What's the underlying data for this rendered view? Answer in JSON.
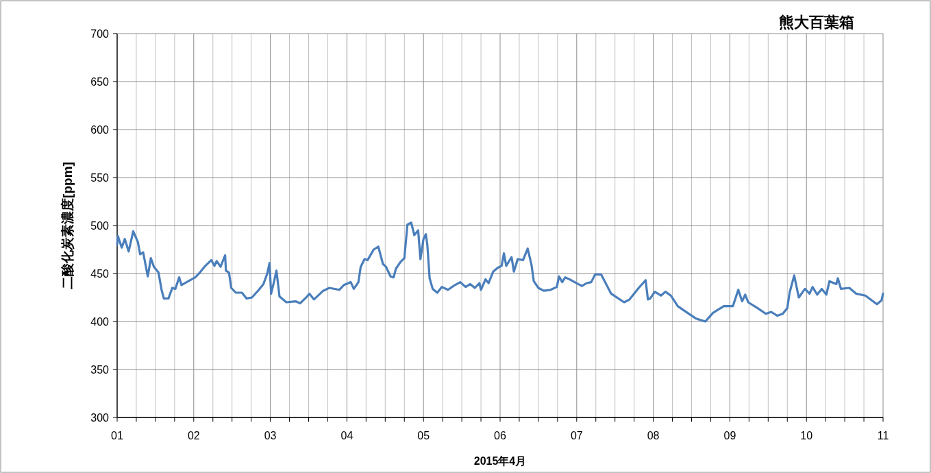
{
  "chart_data": {
    "type": "line",
    "title": "熊大百葉箱",
    "xlabel": "2015年4月",
    "ylabel": "二酸化炭素濃度[ppm]",
    "xlim": [
      1,
      11
    ],
    "ylim": [
      300,
      700
    ],
    "xticks": [
      {
        "value": 1,
        "label": "01"
      },
      {
        "value": 1.25,
        "label": null
      },
      {
        "value": 1.5,
        "label": null
      },
      {
        "value": 1.75,
        "label": null
      },
      {
        "value": 2,
        "label": "02"
      },
      {
        "value": 2.25,
        "label": null
      },
      {
        "value": 2.5,
        "label": null
      },
      {
        "value": 2.75,
        "label": null
      },
      {
        "value": 3,
        "label": "03"
      },
      {
        "value": 3.25,
        "label": null
      },
      {
        "value": 3.5,
        "label": null
      },
      {
        "value": 3.75,
        "label": null
      },
      {
        "value": 4,
        "label": "04"
      },
      {
        "value": 4.25,
        "label": null
      },
      {
        "value": 4.5,
        "label": null
      },
      {
        "value": 4.75,
        "label": null
      },
      {
        "value": 5,
        "label": "05"
      },
      {
        "value": 5.25,
        "label": null
      },
      {
        "value": 5.5,
        "label": null
      },
      {
        "value": 5.75,
        "label": null
      },
      {
        "value": 6,
        "label": "06"
      },
      {
        "value": 6.25,
        "label": null
      },
      {
        "value": 6.5,
        "label": null
      },
      {
        "value": 6.75,
        "label": null
      },
      {
        "value": 7,
        "label": "07"
      },
      {
        "value": 7.25,
        "label": null
      },
      {
        "value": 7.5,
        "label": null
      },
      {
        "value": 7.75,
        "label": null
      },
      {
        "value": 8,
        "label": "08"
      },
      {
        "value": 8.25,
        "label": null
      },
      {
        "value": 8.5,
        "label": null
      },
      {
        "value": 8.75,
        "label": null
      },
      {
        "value": 9,
        "label": "09"
      },
      {
        "value": 9.25,
        "label": null
      },
      {
        "value": 9.5,
        "label": null
      },
      {
        "value": 9.75,
        "label": null
      },
      {
        "value": 10,
        "label": "10"
      },
      {
        "value": 10.25,
        "label": null
      },
      {
        "value": 10.5,
        "label": null
      },
      {
        "value": 10.75,
        "label": null
      },
      {
        "value": 11,
        "label": "11"
      }
    ],
    "yticks": [
      300,
      350,
      400,
      450,
      500,
      550,
      600,
      650,
      700
    ],
    "grid": true,
    "marker": "none",
    "line_style": "solid",
    "x": [
      1.0,
      1.01,
      1.06,
      1.1,
      1.15,
      1.21,
      1.27,
      1.3,
      1.34,
      1.4,
      1.44,
      1.48,
      1.54,
      1.58,
      1.61,
      1.67,
      1.72,
      1.76,
      1.81,
      1.84,
      1.93,
      2.02,
      2.08,
      2.14,
      2.23,
      2.27,
      2.3,
      2.35,
      2.41,
      2.42,
      2.46,
      2.49,
      2.55,
      2.63,
      2.69,
      2.76,
      2.85,
      2.91,
      2.96,
      2.99,
      3.01,
      3.05,
      3.08,
      3.12,
      3.21,
      3.33,
      3.39,
      3.48,
      3.51,
      3.57,
      3.69,
      3.77,
      3.9,
      3.96,
      4.05,
      4.09,
      4.15,
      4.18,
      4.23,
      4.27,
      4.35,
      4.41,
      4.47,
      4.51,
      4.57,
      4.61,
      4.64,
      4.7,
      4.75,
      4.79,
      4.84,
      4.88,
      4.93,
      4.96,
      5.0,
      5.03,
      5.05,
      5.08,
      5.12,
      5.18,
      5.24,
      5.32,
      5.41,
      5.48,
      5.55,
      5.61,
      5.67,
      5.73,
      5.75,
      5.81,
      5.85,
      5.91,
      5.97,
      6.02,
      6.05,
      6.08,
      6.15,
      6.18,
      6.23,
      6.3,
      6.36,
      6.41,
      6.44,
      6.5,
      6.57,
      6.66,
      6.74,
      6.77,
      6.81,
      6.85,
      6.93,
      7.02,
      7.07,
      7.13,
      7.19,
      7.24,
      7.32,
      7.45,
      7.62,
      7.69,
      7.81,
      7.9,
      7.93,
      7.96,
      8.02,
      8.1,
      8.16,
      8.23,
      8.32,
      8.41,
      8.56,
      8.68,
      8.78,
      8.92,
      9.04,
      9.11,
      9.16,
      9.2,
      9.24,
      9.36,
      9.47,
      9.54,
      9.62,
      9.69,
      9.75,
      9.78,
      9.84,
      9.9,
      9.98,
      10.04,
      10.08,
      10.14,
      10.2,
      10.26,
      10.3,
      10.39,
      10.41,
      10.45,
      10.56,
      10.65,
      10.77,
      10.92,
      10.98,
      11.0
    ],
    "series": [
      {
        "color": "#4a7ebb",
        "values": [
          480,
          489,
          477,
          486,
          473,
          494,
          483,
          470,
          472,
          447,
          466,
          457,
          451,
          433,
          424,
          424,
          435,
          434,
          446,
          438,
          442,
          446,
          451,
          457,
          464,
          458,
          463,
          457,
          469,
          453,
          451,
          435,
          430,
          430,
          424,
          425,
          433,
          439,
          450,
          461,
          429,
          442,
          453,
          426,
          420,
          421,
          419,
          426,
          429,
          423,
          432,
          435,
          433,
          438,
          441,
          434,
          441,
          457,
          465,
          464,
          475,
          478,
          460,
          457,
          447,
          446,
          455,
          462,
          466,
          501,
          503,
          490,
          495,
          465,
          486,
          491,
          480,
          445,
          434,
          430,
          436,
          433,
          438,
          441,
          436,
          439,
          435,
          440,
          433,
          444,
          440,
          452,
          456,
          458,
          471,
          458,
          467,
          452,
          465,
          464,
          476,
          459,
          442,
          435,
          432,
          433,
          436,
          447,
          441,
          446,
          443,
          439,
          437,
          440,
          441,
          449,
          449,
          429,
          420,
          423,
          435,
          443,
          423,
          424,
          431,
          427,
          431,
          427,
          416,
          411,
          403,
          400,
          409,
          416,
          416,
          433,
          421,
          428,
          420,
          414,
          408,
          410,
          406,
          408,
          414,
          430,
          448,
          425,
          434,
          429,
          436,
          428,
          434,
          428,
          442,
          439,
          445,
          434,
          435,
          429,
          427,
          418,
          422,
          429
        ]
      }
    ]
  }
}
